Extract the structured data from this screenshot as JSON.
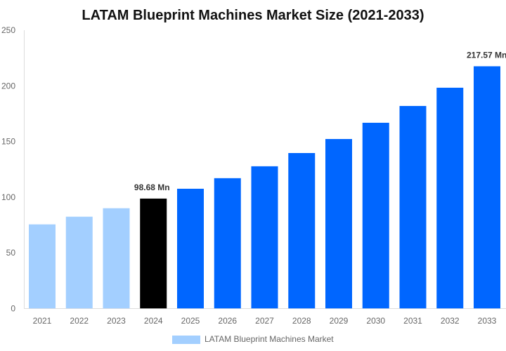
{
  "chart_data": {
    "type": "bar",
    "title": "LATAM Blueprint Machines Market Size (2021-2033)",
    "xlabel": "",
    "ylabel": "",
    "ylim": [
      0,
      250
    ],
    "yticks": [
      0,
      50,
      100,
      150,
      200,
      250
    ],
    "categories": [
      "2021",
      "2022",
      "2023",
      "2024",
      "2025",
      "2026",
      "2027",
      "2028",
      "2029",
      "2030",
      "2031",
      "2032",
      "2033"
    ],
    "series": [
      {
        "name": "LATAM Blueprint Machines Market",
        "values": [
          75.5,
          82.4,
          90.0,
          98.68,
          107.5,
          117.0,
          127.7,
          139.6,
          152.2,
          166.8,
          181.9,
          198.3,
          217.57
        ],
        "colors": [
          "#a3cfff",
          "#a3cfff",
          "#a3cfff",
          "#000000",
          "#0066ff",
          "#0066ff",
          "#0066ff",
          "#0066ff",
          "#0066ff",
          "#0066ff",
          "#0066ff",
          "#0066ff",
          "#0066ff"
        ]
      }
    ],
    "data_labels": {
      "3": "98.68 Mn",
      "12": "217.57 Mn"
    },
    "grid": false,
    "legend_placement": "bottom",
    "legend_color": "#a3cfff"
  }
}
